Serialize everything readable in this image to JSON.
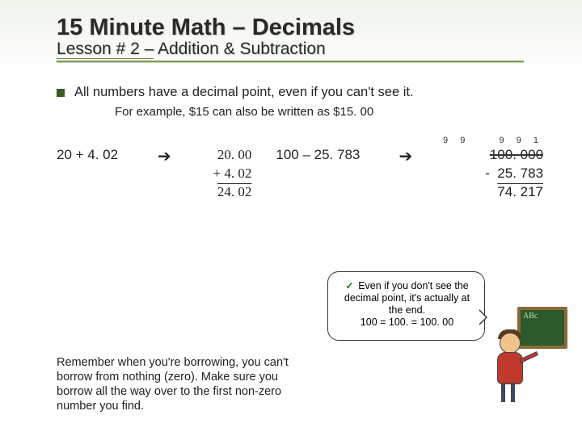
{
  "title": "15 Minute Math – Decimals",
  "subtitle_underlined": "Lesson # 2 –",
  "subtitle_rest": " Addition & Subtraction",
  "bullet": "All numbers have a decimal point, even if you can't see it.",
  "example": "For example, $15 can also be written as $15. 00",
  "addition": {
    "expr": "20 + 4. 02",
    "arrow": "➔",
    "line1": "20. 00",
    "line2": "+ 4. 02",
    "result": "24. 02"
  },
  "subtraction": {
    "expr": "100 – 25. 783",
    "arrow": "➔",
    "borrow": " 9 9    9 9 1",
    "line1": "  100. 000",
    "strike": "100. 000",
    "line2": "-  25. 783",
    "result": "74. 217"
  },
  "remember": "Remember when you're borrowing, you can't borrow from nothing (zero).  Make sure you borrow all the way over to the first non-zero number you find.",
  "callout": {
    "check": "✓",
    "text": " Even if you don't see the decimal point, it's actually at the end.",
    "eq": "100 = 100. = 100. 00"
  },
  "board_text": "ABc",
  "colors": {
    "accent": "#7a9a5a",
    "bullet": "#3a5a2a"
  }
}
